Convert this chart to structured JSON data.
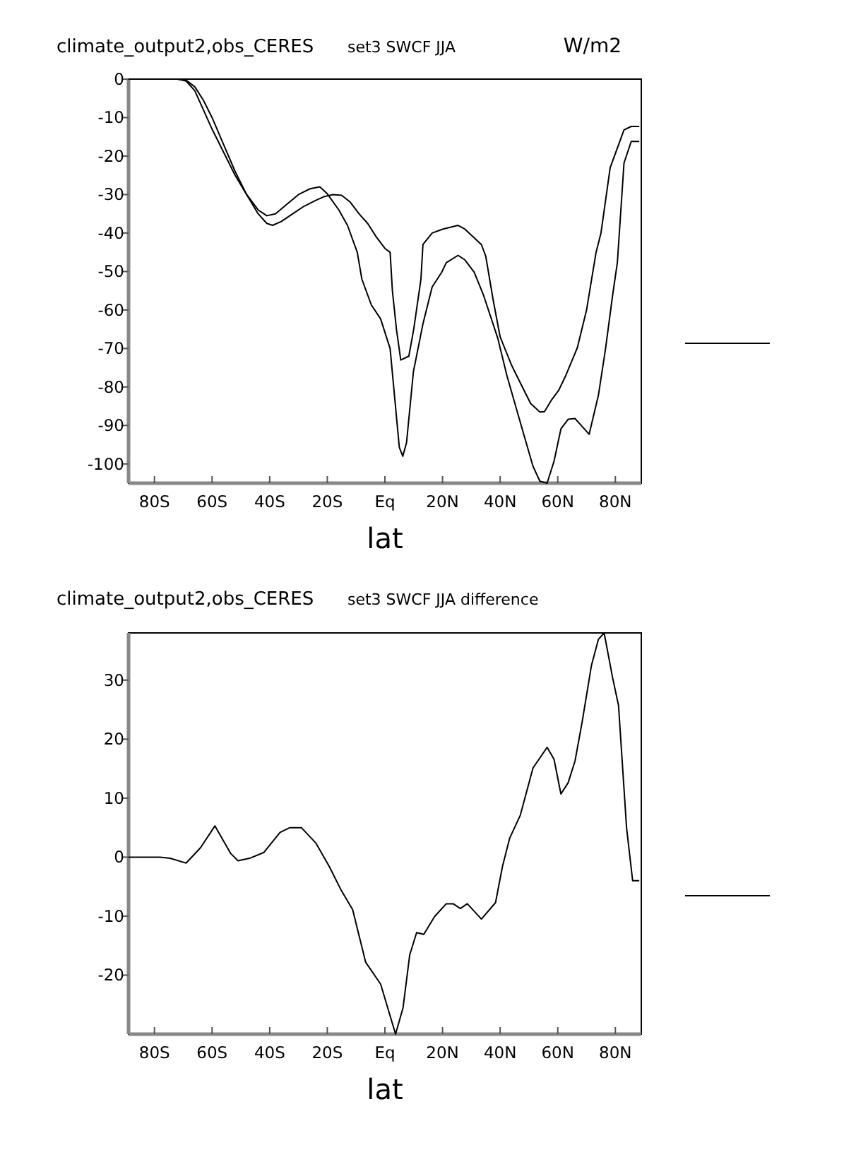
{
  "chart_data": [
    {
      "type": "line",
      "title": "climate_output2,obs_CERES",
      "subtitle": "set3 SWCF JJA",
      "annotations": [
        "W/m2"
      ],
      "xlabel": "lat",
      "xlim": [
        -89,
        89
      ],
      "xticks": [
        {
          "value": -80,
          "label": "80S"
        },
        {
          "value": -60,
          "label": "60S"
        },
        {
          "value": -40,
          "label": "40S"
        },
        {
          "value": -20,
          "label": "20S"
        },
        {
          "value": 0,
          "label": "Eq"
        },
        {
          "value": 20,
          "label": "20N"
        },
        {
          "value": 40,
          "label": "40N"
        },
        {
          "value": 60,
          "label": "60N"
        },
        {
          "value": 80,
          "label": "80N"
        }
      ],
      "ylim": [
        -105,
        0
      ],
      "yticks": [
        0,
        -10,
        -20,
        -30,
        -40,
        -50,
        -60,
        -70,
        -80,
        -90,
        -100
      ],
      "series": [
        {
          "color": "#000000",
          "x": [
            -89,
            -80,
            -72,
            -69,
            -66,
            -63,
            -60,
            -56,
            -52,
            -48,
            -44,
            -41,
            -39,
            -36,
            -32,
            -28,
            -24,
            -21,
            -18,
            -15,
            -12,
            -9,
            -6,
            -3,
            0,
            1.8,
            2.6,
            4,
            5.5,
            8.3,
            10,
            12.5,
            13.2,
            16.4,
            20,
            25.4,
            27.8,
            33.5,
            35,
            37.6,
            40,
            44,
            47.3,
            50.6,
            53.8,
            55.4,
            57.9,
            60.3,
            62.8,
            66.8,
            70,
            73.3,
            75,
            78.2,
            83,
            85.5,
            88.3
          ],
          "values": [
            0,
            0,
            0,
            -0.5,
            -3,
            -8,
            -13,
            -19,
            -25,
            -30,
            -35,
            -37.5,
            -38,
            -37,
            -35,
            -33,
            -31.5,
            -30.5,
            -30,
            -30.2,
            -32,
            -35,
            -37.5,
            -41,
            -44,
            -45,
            -55,
            -65,
            -73,
            -72,
            -65,
            -52,
            -43,
            -40,
            -39,
            -38,
            -39,
            -43,
            -46,
            -57.5,
            -67,
            -74.4,
            -79.4,
            -84.3,
            -86.5,
            -86.4,
            -83.3,
            -80.9,
            -77,
            -69.8,
            -60,
            -45,
            -40,
            -23,
            -13.2,
            -12.3,
            -12.3
          ]
        },
        {
          "color": "#000000",
          "x": [
            -89,
            -72,
            -69,
            -66,
            -63,
            -60,
            -56,
            -52,
            -48,
            -44,
            -41,
            -38,
            -34,
            -30,
            -26,
            -22.6,
            -20,
            -16,
            -13,
            -9.6,
            -8,
            -4.7,
            -1.5,
            1.8,
            5,
            6.2,
            7.5,
            9.9,
            13.2,
            16.4,
            19.7,
            21.3,
            25.4,
            27.8,
            31,
            34.3,
            39.2,
            42.4,
            45.7,
            49,
            51.4,
            53.8,
            56.3,
            58.7,
            61.1,
            63.6,
            66,
            68.5,
            70.9,
            74.1,
            76.6,
            79,
            80.7,
            83,
            85.5,
            88.3
          ],
          "values": [
            0,
            0,
            -0.3,
            -2,
            -5.5,
            -10,
            -17,
            -24,
            -30,
            -34,
            -35.5,
            -35,
            -32.5,
            -30,
            -28.5,
            -28,
            -29.8,
            -34,
            -38,
            -45,
            -52,
            -58.7,
            -62.3,
            -70,
            -95.7,
            -98,
            -94.5,
            -76,
            -63.6,
            -54,
            -50.2,
            -47.7,
            -45.8,
            -47,
            -50.2,
            -56.3,
            -67.4,
            -77.2,
            -85.8,
            -94.4,
            -100.6,
            -104.5,
            -105,
            -99.3,
            -90.9,
            -88.4,
            -88.2,
            -90.3,
            -92.3,
            -82.2,
            -70,
            -56.4,
            -47.6,
            -21.8,
            -16.2,
            -16.2
          ]
        }
      ]
    },
    {
      "type": "line",
      "title": "climate_output2,obs_CERES",
      "subtitle": "set3 SWCF JJA difference",
      "xlabel": "lat",
      "xlim": [
        -89,
        89
      ],
      "xticks": [
        {
          "value": -80,
          "label": "80S"
        },
        {
          "value": -60,
          "label": "60S"
        },
        {
          "value": -40,
          "label": "40S"
        },
        {
          "value": -20,
          "label": "20S"
        },
        {
          "value": 0,
          "label": "Eq"
        },
        {
          "value": 20,
          "label": "20N"
        },
        {
          "value": 40,
          "label": "40N"
        },
        {
          "value": 60,
          "label": "60N"
        },
        {
          "value": 80,
          "label": "80N"
        }
      ],
      "ylim": [
        -30,
        38
      ],
      "yticks": [
        30,
        20,
        10,
        0,
        -10,
        -20
      ],
      "series": [
        {
          "color": "#000000",
          "x": [
            -89,
            -78,
            -74.6,
            -69,
            -64,
            -59,
            -53.5,
            -51,
            -47,
            -42,
            -36.4,
            -33,
            -29,
            -24,
            -19.3,
            -15.3,
            -11.2,
            -6.7,
            -1.5,
            3.7,
            6.3,
            8.6,
            11,
            13.5,
            17.2,
            21.3,
            23.7,
            26.2,
            28.6,
            33.5,
            38.4,
            40.8,
            43.3,
            47,
            51.4,
            56.3,
            58.7,
            61.1,
            63.6,
            66,
            68.5,
            71.7,
            74.1,
            76.1,
            79,
            81.1,
            83.9,
            86,
            88.3
          ],
          "values": [
            0,
            0,
            -0.2,
            -1,
            1.6,
            5.3,
            0.6,
            -0.6,
            -0.2,
            0.8,
            4.2,
            5,
            5,
            2.4,
            -1.6,
            -5.5,
            -8.9,
            -17.8,
            -21.5,
            -30,
            -25.5,
            -16.6,
            -12.8,
            -13.1,
            -10.1,
            -7.9,
            -7.9,
            -8.7,
            -7.9,
            -10.5,
            -7.7,
            -1.6,
            3.2,
            7.1,
            15.1,
            18.6,
            16.6,
            10.7,
            12.6,
            16.3,
            23,
            32.5,
            36.9,
            38,
            30.5,
            25.7,
            4.9,
            -4,
            -4
          ]
        }
      ]
    }
  ]
}
